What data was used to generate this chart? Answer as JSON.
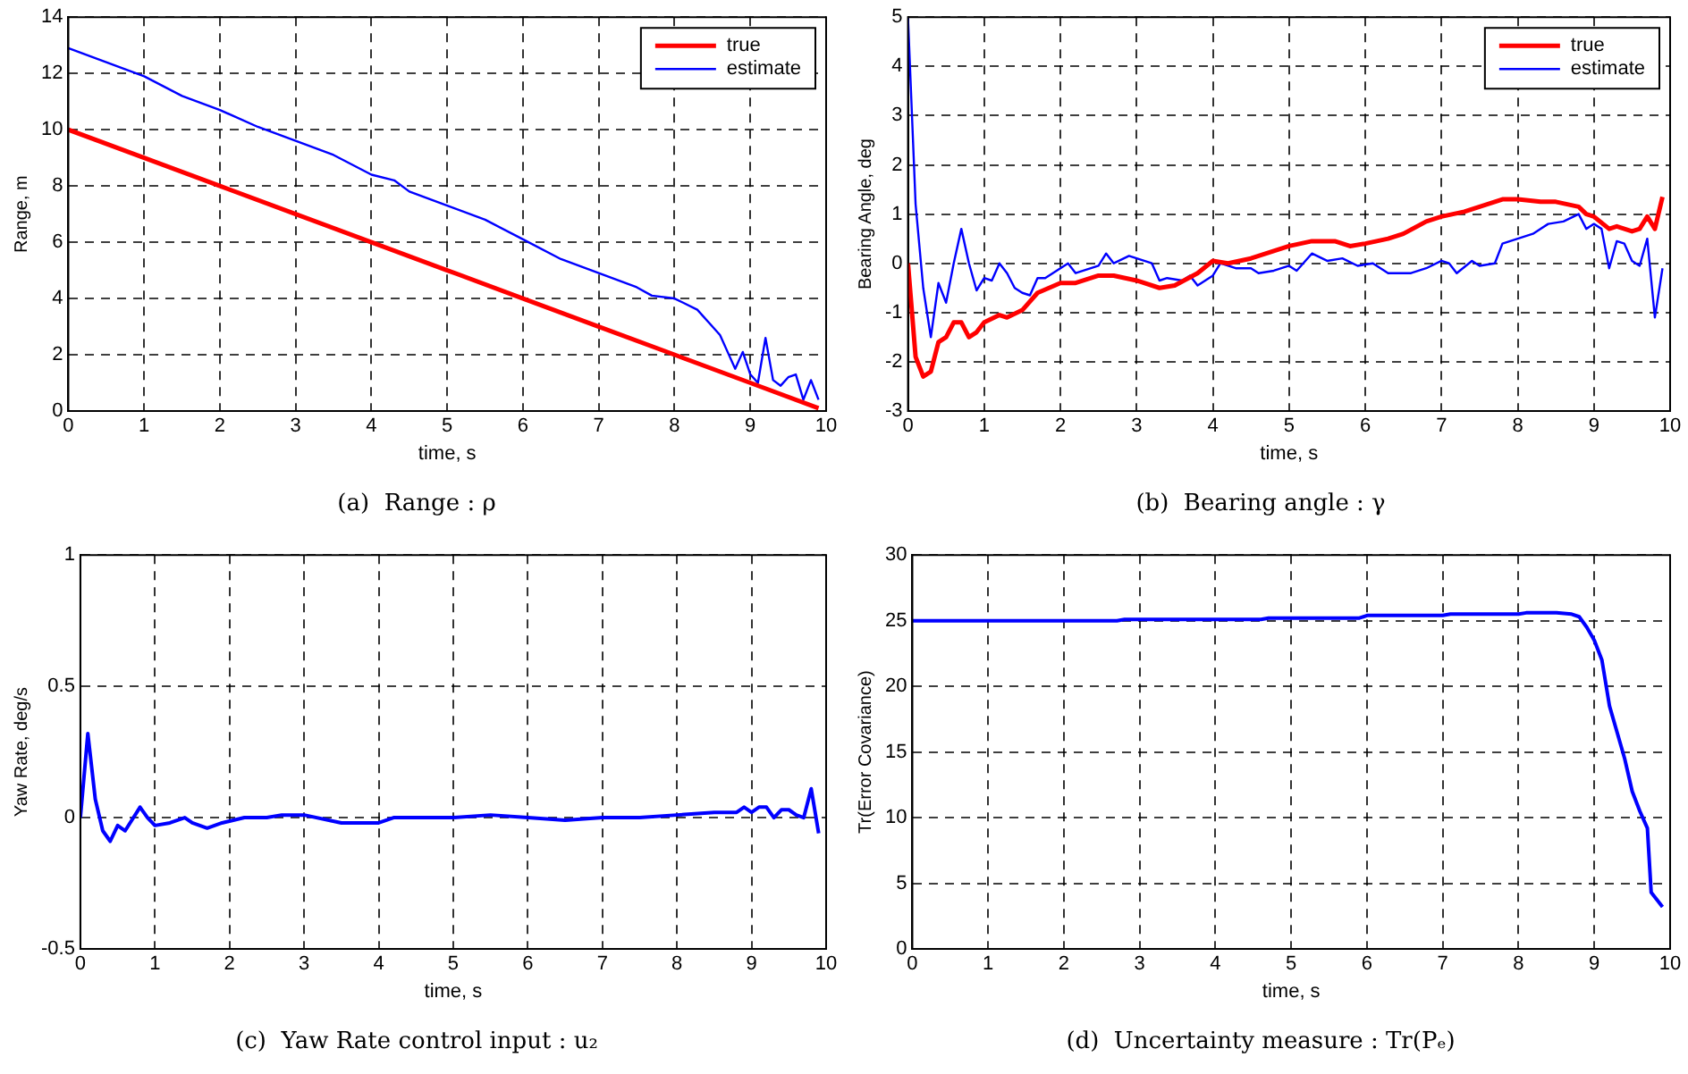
{
  "chart_data": [
    {
      "type": "line",
      "title": "(a)  Range : ρ",
      "xlabel": "time, s",
      "ylabel": "Range, m",
      "xlim": [
        0,
        10
      ],
      "xticks": [
        0,
        1,
        2,
        3,
        4,
        5,
        6,
        7,
        8,
        9,
        10
      ],
      "ylim": [
        0,
        14
      ],
      "yticks": [
        0,
        2,
        4,
        6,
        8,
        10,
        12,
        14
      ],
      "grid": true,
      "legend": "top right",
      "marker": "none",
      "line_style": "solid",
      "series": [
        {
          "name": "true",
          "color": "#ff0000",
          "x": [
            0,
            1,
            2,
            3,
            4,
            5,
            6,
            7,
            8,
            9,
            9.9
          ],
          "values": [
            10,
            9,
            8,
            7,
            6,
            5,
            4,
            3,
            2,
            1,
            0.1
          ]
        },
        {
          "name": "estimate",
          "color": "#0000ff",
          "x": [
            0,
            0.5,
            1,
            1.5,
            2,
            2.5,
            3,
            3.5,
            4,
            4.3,
            4.5,
            5,
            5.5,
            6,
            6.5,
            7,
            7.5,
            7.7,
            8,
            8.3,
            8.5,
            8.6,
            8.7,
            8.8,
            8.9,
            9,
            9.1,
            9.2,
            9.3,
            9.4,
            9.5,
            9.6,
            9.7,
            9.8,
            9.9
          ],
          "values": [
            12.9,
            12.4,
            11.9,
            11.2,
            10.7,
            10.1,
            9.6,
            9.1,
            8.4,
            8.2,
            7.8,
            7.3,
            6.8,
            6.1,
            5.4,
            4.9,
            4.4,
            4.1,
            4,
            3.6,
            3,
            2.7,
            2.1,
            1.5,
            2.1,
            1.3,
            1,
            2.6,
            1.1,
            0.9,
            1.2,
            1.3,
            0.4,
            1.1,
            0.4
          ]
        }
      ]
    },
    {
      "type": "line",
      "title": "(b)  Bearing angle : γ",
      "xlabel": "time, s",
      "ylabel": "Bearing Angle, deg",
      "xlim": [
        0,
        10
      ],
      "xticks": [
        0,
        1,
        2,
        3,
        4,
        5,
        6,
        7,
        8,
        9,
        10
      ],
      "ylim": [
        -3,
        5
      ],
      "yticks": [
        -3,
        -2,
        -1,
        0,
        1,
        2,
        3,
        4,
        5
      ],
      "grid": true,
      "legend": "top right",
      "marker": "none",
      "line_style": "solid",
      "series": [
        {
          "name": "true",
          "color": "#ff0000",
          "x": [
            0,
            0.1,
            0.2,
            0.3,
            0.4,
            0.5,
            0.6,
            0.7,
            0.8,
            0.9,
            1,
            1.2,
            1.3,
            1.5,
            1.7,
            2,
            2.2,
            2.5,
            2.7,
            3,
            3.3,
            3.5,
            3.8,
            4,
            4.2,
            4.5,
            4.8,
            5,
            5.3,
            5.6,
            5.8,
            6,
            6.3,
            6.5,
            6.8,
            7,
            7.3,
            7.5,
            7.8,
            8,
            8.3,
            8.5,
            8.8,
            8.9,
            9,
            9.2,
            9.3,
            9.5,
            9.6,
            9.7,
            9.8,
            9.9
          ],
          "values": [
            0,
            -1.9,
            -2.3,
            -2.2,
            -1.6,
            -1.5,
            -1.2,
            -1.2,
            -1.5,
            -1.4,
            -1.2,
            -1.05,
            -1.1,
            -0.95,
            -0.6,
            -0.4,
            -0.4,
            -0.25,
            -0.25,
            -0.35,
            -0.5,
            -0.45,
            -0.2,
            0.05,
            0,
            0.1,
            0.25,
            0.35,
            0.45,
            0.45,
            0.35,
            0.4,
            0.5,
            0.6,
            0.85,
            0.95,
            1.05,
            1.15,
            1.3,
            1.3,
            1.25,
            1.25,
            1.15,
            1,
            0.95,
            0.7,
            0.75,
            0.65,
            0.7,
            0.95,
            0.7,
            1.35
          ]
        },
        {
          "name": "estimate",
          "color": "#0000ff",
          "x": [
            0,
            0.1,
            0.2,
            0.3,
            0.4,
            0.5,
            0.6,
            0.7,
            0.8,
            0.9,
            1,
            1.1,
            1.2,
            1.3,
            1.4,
            1.5,
            1.6,
            1.7,
            1.8,
            1.9,
            2.1,
            2.2,
            2.4,
            2.5,
            2.6,
            2.7,
            2.9,
            3,
            3.2,
            3.3,
            3.4,
            3.6,
            3.7,
            3.8,
            4,
            4.1,
            4.3,
            4.5,
            4.6,
            4.8,
            5,
            5.1,
            5.3,
            5.5,
            5.7,
            5.9,
            6.1,
            6.3,
            6.6,
            6.8,
            7,
            7.1,
            7.2,
            7.4,
            7.5,
            7.7,
            7.8,
            8,
            8.2,
            8.4,
            8.6,
            8.8,
            8.9,
            9,
            9.1,
            9.2,
            9.3,
            9.4,
            9.5,
            9.6,
            9.7,
            9.8,
            9.9
          ],
          "values": [
            5,
            1.2,
            -0.5,
            -1.5,
            -0.4,
            -0.8,
            0,
            0.7,
            0,
            -0.55,
            -0.3,
            -0.35,
            0,
            -0.2,
            -0.5,
            -0.6,
            -0.65,
            -0.3,
            -0.3,
            -0.2,
            0,
            -0.2,
            -0.1,
            -0.05,
            0.2,
            0,
            0.15,
            0.1,
            0,
            -0.35,
            -0.3,
            -0.35,
            -0.25,
            -0.45,
            -0.25,
            0,
            -0.1,
            -0.1,
            -0.2,
            -0.15,
            -0.05,
            -0.15,
            0.2,
            0.05,
            0.1,
            -0.05,
            0,
            -0.2,
            -0.2,
            -0.1,
            0.05,
            0,
            -0.2,
            0.05,
            -0.05,
            0,
            0.4,
            0.5,
            0.6,
            0.8,
            0.85,
            1,
            0.7,
            0.8,
            0.7,
            -0.1,
            0.45,
            0.4,
            0.05,
            -0.05,
            0.5,
            -1.1,
            -0.1
          ]
        }
      ]
    },
    {
      "type": "line",
      "title": "(c)  Yaw Rate control input : u₂",
      "xlabel": "time, s",
      "ylabel": "Yaw Rate, deg/s",
      "xlim": [
        0,
        10
      ],
      "xticks": [
        0,
        1,
        2,
        3,
        4,
        5,
        6,
        7,
        8,
        9,
        10
      ],
      "ylim": [
        -0.5,
        1
      ],
      "yticks": [
        -0.5,
        0,
        0.5,
        1
      ],
      "grid": true,
      "marker": "none",
      "line_style": "solid",
      "series": [
        {
          "color": "#0000ff",
          "x": [
            0,
            0.1,
            0.2,
            0.3,
            0.4,
            0.5,
            0.6,
            0.8,
            0.9,
            1,
            1.2,
            1.4,
            1.5,
            1.7,
            1.9,
            2.2,
            2.5,
            2.7,
            3,
            3.5,
            4,
            4.2,
            5,
            5.5,
            6,
            6.5,
            7,
            7.5,
            8,
            8.5,
            8.8,
            8.9,
            9,
            9.1,
            9.2,
            9.3,
            9.4,
            9.5,
            9.6,
            9.7,
            9.8,
            9.9
          ],
          "values": [
            0,
            0.32,
            0.07,
            -0.05,
            -0.09,
            -0.03,
            -0.05,
            0.04,
            0,
            -0.03,
            -0.02,
            0,
            -0.02,
            -0.04,
            -0.02,
            0,
            0,
            0.01,
            0.01,
            -0.02,
            -0.02,
            0,
            0,
            0.01,
            0,
            -0.01,
            0,
            0,
            0.01,
            0.02,
            0.02,
            0.04,
            0.02,
            0.04,
            0.04,
            0,
            0.03,
            0.03,
            0.01,
            0,
            0.11,
            -0.06
          ]
        }
      ]
    },
    {
      "type": "line",
      "title": "(d)  Uncertainty measure : Tr(Pₑ)",
      "xlabel": "time, s",
      "ylabel": "Tr(Error Covariance)",
      "xlim": [
        0,
        10
      ],
      "xticks": [
        0,
        1,
        2,
        3,
        4,
        5,
        6,
        7,
        8,
        9,
        10
      ],
      "ylim": [
        0,
        30
      ],
      "yticks": [
        0,
        5,
        10,
        15,
        20,
        25,
        30
      ],
      "grid": true,
      "marker": "none",
      "line_style": "solid",
      "series": [
        {
          "color": "#0000ff",
          "x": [
            0,
            2.7,
            2.8,
            4.6,
            4.7,
            5.9,
            6,
            7,
            7.1,
            8,
            8.1,
            8.5,
            8.7,
            8.8,
            8.9,
            9,
            9.1,
            9.2,
            9.3,
            9.4,
            9.5,
            9.6,
            9.7,
            9.75,
            9.9
          ],
          "values": [
            25,
            25,
            25.1,
            25.1,
            25.2,
            25.2,
            25.4,
            25.4,
            25.5,
            25.5,
            25.6,
            25.6,
            25.5,
            25.3,
            24.5,
            23.5,
            22,
            18.5,
            16.5,
            14.5,
            12,
            10.5,
            9.2,
            4.3,
            3.2
          ]
        }
      ]
    }
  ]
}
